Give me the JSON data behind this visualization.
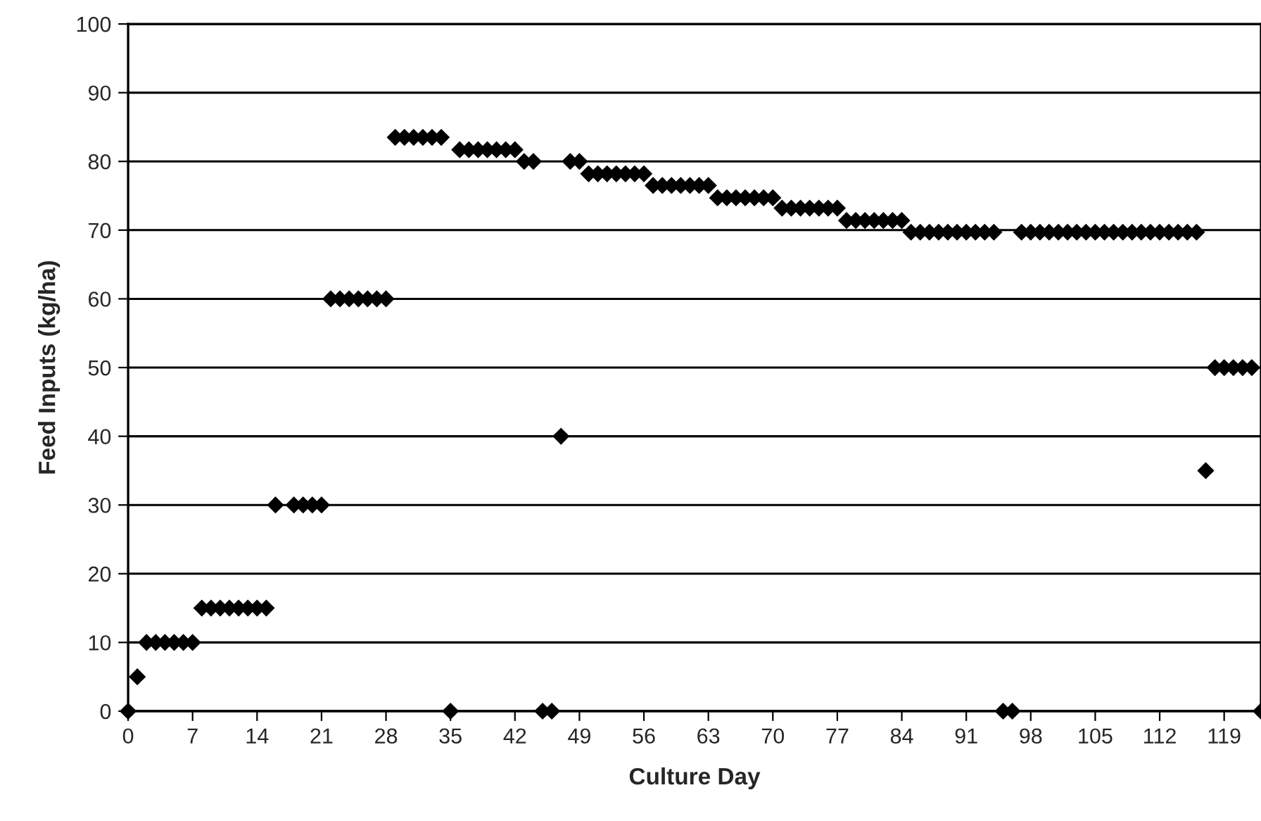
{
  "chart_data": {
    "type": "scatter",
    "xlabel": "Culture Day",
    "ylabel": "Feed Inputs (kg/ha)",
    "marker": "diamond",
    "grid": "y",
    "xlim": [
      0,
      123
    ],
    "xticks": [
      0,
      7,
      14,
      21,
      28,
      35,
      42,
      49,
      56,
      63,
      70,
      77,
      84,
      91,
      98,
      105,
      112,
      119
    ],
    "ylim": [
      0,
      100
    ],
    "yticks": [
      0,
      10,
      20,
      30,
      40,
      50,
      60,
      70,
      80,
      90,
      100
    ],
    "series": [
      {
        "color": "#000000",
        "x": [
          0,
          1,
          2,
          3,
          4,
          5,
          6,
          7,
          8,
          9,
          10,
          11,
          12,
          13,
          14,
          15,
          16,
          18,
          19,
          20,
          21,
          22,
          23,
          24,
          25,
          26,
          27,
          28,
          29,
          30,
          31,
          32,
          33,
          34,
          35,
          36,
          37,
          38,
          39,
          40,
          41,
          42,
          43,
          44,
          45,
          46,
          47,
          48,
          49,
          50,
          51,
          52,
          53,
          54,
          55,
          56,
          57,
          58,
          59,
          60,
          61,
          62,
          63,
          64,
          65,
          66,
          67,
          68,
          69,
          70,
          71,
          72,
          73,
          74,
          75,
          76,
          77,
          78,
          79,
          80,
          81,
          82,
          83,
          84,
          85,
          86,
          87,
          88,
          89,
          90,
          91,
          92,
          93,
          94,
          95,
          96,
          97,
          98,
          99,
          100,
          101,
          102,
          103,
          104,
          105,
          106,
          107,
          108,
          109,
          110,
          111,
          112,
          113,
          114,
          115,
          116,
          117,
          118,
          119,
          120,
          121,
          122,
          123
        ],
        "values": [
          0,
          5,
          10,
          10,
          10,
          10,
          10,
          10,
          15,
          15,
          15,
          15,
          15,
          15,
          15,
          15,
          30,
          30,
          30,
          30,
          30,
          60,
          60,
          60,
          60,
          60,
          60,
          60,
          83.5,
          83.5,
          83.5,
          83.5,
          83.5,
          83.5,
          0,
          81.7,
          81.7,
          81.7,
          81.7,
          81.7,
          81.7,
          81.7,
          80,
          80,
          0,
          0,
          40,
          80,
          80,
          78.2,
          78.2,
          78.2,
          78.2,
          78.2,
          78.2,
          78.2,
          76.5,
          76.5,
          76.5,
          76.5,
          76.5,
          76.5,
          76.5,
          74.7,
          74.7,
          74.7,
          74.7,
          74.7,
          74.7,
          74.7,
          73.2,
          73.2,
          73.2,
          73.2,
          73.2,
          73.2,
          73.2,
          71.4,
          71.4,
          71.4,
          71.4,
          71.4,
          71.4,
          71.4,
          69.7,
          69.7,
          69.7,
          69.7,
          69.7,
          69.7,
          69.7,
          69.7,
          69.7,
          69.7,
          0,
          0,
          69.7,
          69.7,
          69.7,
          69.7,
          69.7,
          69.7,
          69.7,
          69.7,
          69.7,
          69.7,
          69.7,
          69.7,
          69.7,
          69.7,
          69.7,
          69.7,
          69.7,
          69.7,
          69.7,
          69.7,
          35,
          50,
          50,
          50,
          50,
          50,
          0
        ]
      }
    ]
  }
}
